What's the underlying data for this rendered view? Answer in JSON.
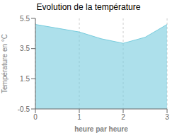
{
  "chart_data": {
    "type": "area",
    "title": "Evolution de la température",
    "xlabel": "heure par heure",
    "ylabel": "Température en °C",
    "x": [
      0,
      0.5,
      1,
      1.5,
      2,
      2.5,
      3
    ],
    "values": [
      5.1,
      4.85,
      4.6,
      4.15,
      3.85,
      4.25,
      5.1
    ],
    "xlim": [
      0,
      3
    ],
    "ylim": [
      -0.5,
      5.5
    ],
    "xticks": [
      0,
      1,
      2,
      3
    ],
    "yticks": [
      -0.5,
      1.5,
      3.5,
      5.5
    ],
    "color": "#77ccdd",
    "grid": "x"
  }
}
